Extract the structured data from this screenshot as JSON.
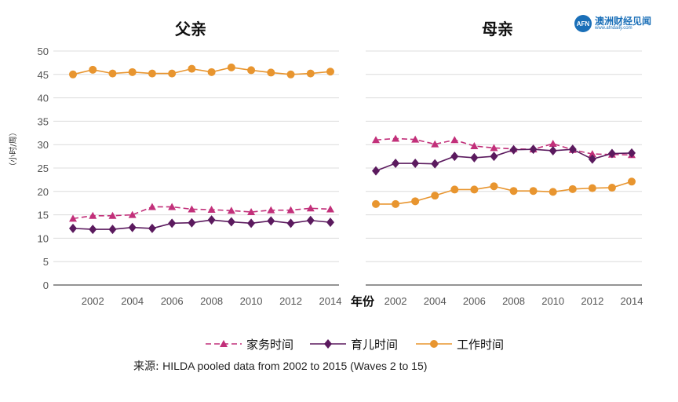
{
  "logo": {
    "badge": "AFN",
    "name": "澳洲财经见闻",
    "url": "www.afndaily.com"
  },
  "source": {
    "label": "来源:",
    "text": "HILDA pooled data from 2002 to 2015 (Waves 2 to 15)"
  },
  "colors": {
    "housework": "#c2307a",
    "childcare": "#5b1a5e",
    "work": "#e8952f",
    "grid": "#dcdcdc",
    "axis": "#555555"
  },
  "chart_data": {
    "type": "line",
    "ylabel": "（小时/周）",
    "xlabel": "年份",
    "ylim": [
      0,
      50
    ],
    "yticks": [
      0,
      5,
      10,
      15,
      20,
      25,
      30,
      35,
      40,
      45,
      50
    ],
    "xticks": [
      2002,
      2004,
      2006,
      2008,
      2010,
      2012,
      2014
    ],
    "x": [
      2001,
      2002,
      2003,
      2004,
      2005,
      2006,
      2007,
      2008,
      2009,
      2010,
      2011,
      2012,
      2013,
      2014
    ],
    "legend": [
      {
        "key": "housework",
        "label": "家务时间"
      },
      {
        "key": "childcare",
        "label": "育儿时间"
      },
      {
        "key": "work",
        "label": "工作时间"
      }
    ],
    "panels": [
      {
        "title": "父亲",
        "series": [
          {
            "key": "housework",
            "name": "家务时间",
            "values": [
              14.2,
              14.8,
              14.8,
              15.0,
              16.7,
              16.7,
              16.2,
              16.1,
              15.9,
              15.6,
              16.0,
              16.0,
              16.4,
              16.2
            ]
          },
          {
            "key": "childcare",
            "name": "育儿时间",
            "values": [
              12.1,
              11.9,
              11.9,
              12.3,
              12.1,
              13.2,
              13.3,
              13.9,
              13.5,
              13.2,
              13.7,
              13.2,
              13.8,
              13.4
            ]
          },
          {
            "key": "work",
            "name": "工作时间",
            "values": [
              45.0,
              46.0,
              45.2,
              45.5,
              45.2,
              45.2,
              46.2,
              45.5,
              46.5,
              45.9,
              45.4,
              45.0,
              45.2,
              45.6
            ]
          }
        ]
      },
      {
        "title": "母亲",
        "series": [
          {
            "key": "housework",
            "name": "家务时间",
            "values": [
              31.0,
              31.3,
              31.1,
              30.1,
              31.0,
              29.7,
              29.3,
              29.1,
              29.0,
              30.2,
              28.9,
              28.0,
              27.9,
              27.8
            ]
          },
          {
            "key": "childcare",
            "name": "育儿时间",
            "values": [
              24.4,
              26.0,
              26.0,
              25.9,
              27.5,
              27.2,
              27.5,
              28.9,
              29.0,
              28.7,
              29.0,
              26.9,
              28.1,
              28.2
            ]
          },
          {
            "key": "work",
            "name": "工作时间",
            "values": [
              17.3,
              17.3,
              17.9,
              19.1,
              20.4,
              20.4,
              21.1,
              20.1,
              20.1,
              19.9,
              20.5,
              20.7,
              20.8,
              22.1
            ]
          }
        ]
      }
    ]
  }
}
